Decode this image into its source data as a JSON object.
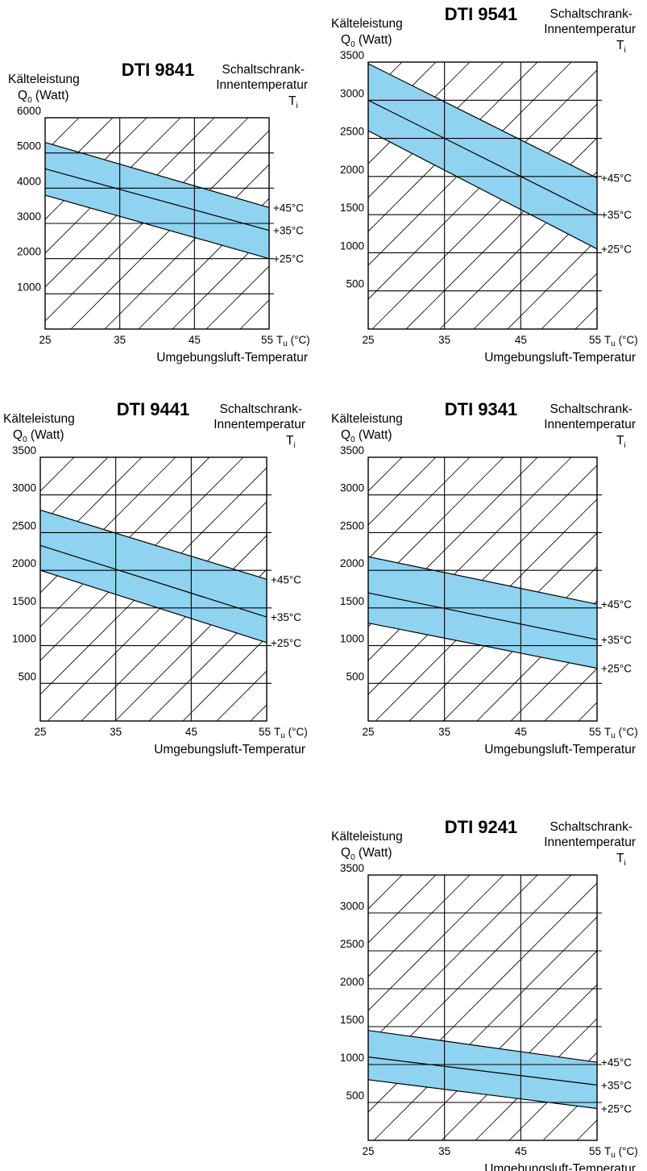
{
  "labels": {
    "ylabel_line1": "Kälteleistung",
    "ylabel_q": "Q",
    "ylabel_q_sub": "0",
    "ylabel_rest": " (Watt)",
    "ti_line1": "Schaltschrank-",
    "ti_line2": "Innentemperatur",
    "ti_symbol": "T",
    "ti_sub": "i",
    "xunit_symbol": "T",
    "xunit_sub": "u",
    "xunit_rest": " (°C)",
    "xlabel": "Umgebungsluft-Temperatur"
  },
  "colors": {
    "band": "#8fd3f0",
    "grid": "#000000",
    "hatch": "#000000"
  },
  "chart_data": [
    {
      "type": "line",
      "title": "DTI 9841",
      "x": [
        25,
        55
      ],
      "xticks": [
        25,
        35,
        45,
        55
      ],
      "ylim": [
        0,
        6000
      ],
      "yticks": [
        1000,
        2000,
        3000,
        4000,
        5000,
        6000
      ],
      "series": [
        {
          "name": "+45°C",
          "values": [
            5300,
            3450
          ]
        },
        {
          "name": "+35°C",
          "values": [
            4550,
            2800
          ]
        },
        {
          "name": "+25°C",
          "values": [
            3800,
            2000
          ]
        }
      ]
    },
    {
      "type": "line",
      "title": "DTI 9541",
      "x": [
        25,
        55
      ],
      "xticks": [
        25,
        35,
        45,
        55
      ],
      "ylim": [
        0,
        3500
      ],
      "yticks": [
        500,
        1000,
        1500,
        2000,
        2500,
        3000,
        3500
      ],
      "series": [
        {
          "name": "+45°C",
          "values": [
            3480,
            1980
          ]
        },
        {
          "name": "+35°C",
          "values": [
            3000,
            1500
          ]
        },
        {
          "name": "+25°C",
          "values": [
            2600,
            1050
          ]
        }
      ]
    },
    {
      "type": "line",
      "title": "DTI 9441",
      "x": [
        25,
        55
      ],
      "xticks": [
        25,
        35,
        45,
        55
      ],
      "ylim": [
        0,
        3500
      ],
      "yticks": [
        500,
        1000,
        1500,
        2000,
        2500,
        3000,
        3500
      ],
      "series": [
        {
          "name": "+45°C",
          "values": [
            2800,
            1880
          ]
        },
        {
          "name": "+35°C",
          "values": [
            2330,
            1380
          ]
        },
        {
          "name": "+25°C",
          "values": [
            2000,
            1040
          ]
        }
      ]
    },
    {
      "type": "line",
      "title": "DTI 9341",
      "x": [
        25,
        55
      ],
      "xticks": [
        25,
        35,
        45,
        55
      ],
      "ylim": [
        0,
        3500
      ],
      "yticks": [
        500,
        1000,
        1500,
        2000,
        2500,
        3000,
        3500
      ],
      "series": [
        {
          "name": "+45°C",
          "values": [
            2180,
            1550
          ]
        },
        {
          "name": "+35°C",
          "values": [
            1700,
            1080
          ]
        },
        {
          "name": "+25°C",
          "values": [
            1300,
            700
          ]
        }
      ]
    },
    {
      "type": "line",
      "title": "DTI 9241",
      "x": [
        25,
        55
      ],
      "xticks": [
        25,
        35,
        45,
        55
      ],
      "ylim": [
        0,
        3500
      ],
      "yticks": [
        500,
        1000,
        1500,
        2000,
        2500,
        3000,
        3500
      ],
      "series": [
        {
          "name": "+45°C",
          "values": [
            1450,
            1030
          ]
        },
        {
          "name": "+35°C",
          "values": [
            1100,
            730
          ]
        },
        {
          "name": "+25°C",
          "values": [
            800,
            420
          ]
        }
      ]
    }
  ]
}
